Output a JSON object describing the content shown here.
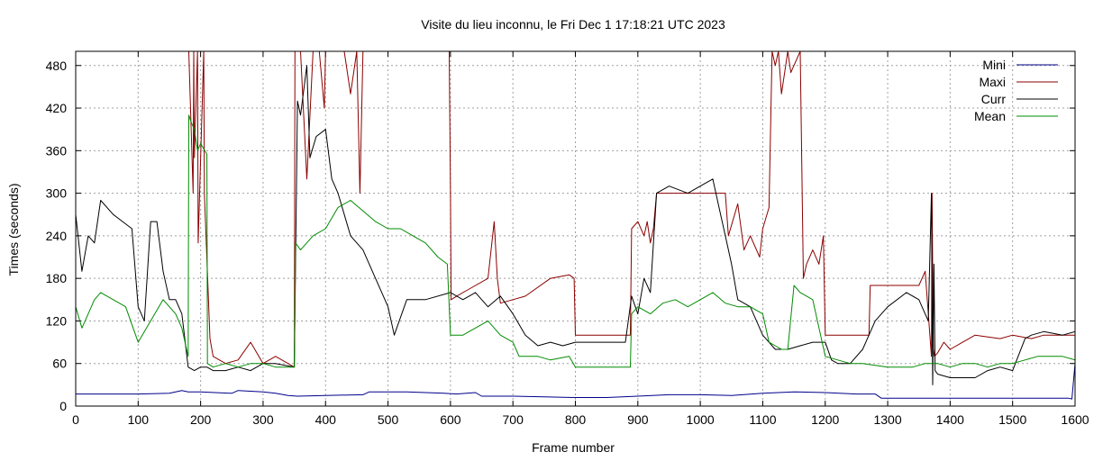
{
  "chart_data": {
    "type": "line",
    "title": "Visite du lieu inconnu, le Fri Dec  1 17:18:21 UTC 2023",
    "xlabel": "Frame number",
    "ylabel": "Times (seconds)",
    "xlim": [
      0,
      1600
    ],
    "ylim": [
      0,
      500
    ],
    "xticks": [
      0,
      100,
      200,
      300,
      400,
      500,
      600,
      700,
      800,
      900,
      1000,
      1100,
      1200,
      1300,
      1400,
      1500,
      1600
    ],
    "yticks": [
      0,
      60,
      120,
      180,
      240,
      300,
      360,
      420,
      480
    ],
    "grid": true,
    "legend_position": "top-right",
    "series": [
      {
        "name": "Mini",
        "color": "#00008b",
        "x": [
          0,
          50,
          100,
          150,
          170,
          180,
          200,
          250,
          260,
          300,
          320,
          340,
          355,
          400,
          460,
          470,
          530,
          590,
          610,
          640,
          650,
          700,
          750,
          800,
          850,
          900,
          950,
          1000,
          1050,
          1100,
          1150,
          1200,
          1250,
          1280,
          1290,
          1350,
          1400,
          1450,
          1500,
          1590,
          1595,
          1600
        ],
        "y": [
          17,
          17,
          17,
          18,
          22,
          20,
          20,
          18,
          22,
          20,
          18,
          15,
          14,
          15,
          16,
          20,
          20,
          18,
          17,
          19,
          14,
          14,
          13,
          12,
          12,
          14,
          16,
          16,
          15,
          18,
          20,
          19,
          17,
          17,
          11,
          11,
          11,
          11,
          11,
          11,
          10,
          60
        ]
      },
      {
        "name": "Maxi",
        "color": "#8b0000",
        "x": [
          0,
          180,
          181,
          188,
          189,
          190,
          195,
          196,
          205,
          206,
          215,
          220,
          240,
          260,
          280,
          300,
          320,
          350,
          351,
          360,
          370,
          380,
          390,
          398,
          400,
          430,
          440,
          450,
          455,
          460,
          470,
          500,
          530,
          560,
          597,
          598,
          600,
          601,
          610,
          630,
          660,
          670,
          675,
          680,
          700,
          720,
          760,
          790,
          798,
          800,
          850,
          888,
          890,
          900,
          910,
          915,
          920,
          925,
          930,
          990,
          1000,
          1030,
          1040,
          1045,
          1060,
          1070,
          1080,
          1095,
          1100,
          1110,
          1115,
          1120,
          1125,
          1130,
          1140,
          1145,
          1160,
          1165,
          1170,
          1180,
          1190,
          1197,
          1200,
          1250,
          1270,
          1272,
          1300,
          1350,
          1360,
          1370,
          1371,
          1373,
          1375,
          1380,
          1390,
          1400,
          1420,
          1440,
          1480,
          1500,
          1530,
          1550,
          1600
        ],
        "y": [
          null,
          null,
          500,
          300,
          500,
          350,
          500,
          230,
          500,
          300,
          95,
          70,
          60,
          65,
          90,
          60,
          70,
          55,
          500,
          500,
          320,
          500,
          500,
          420,
          500,
          500,
          440,
          500,
          300,
          500,
          null,
          null,
          null,
          null,
          null,
          500,
          300,
          150,
          155,
          165,
          180,
          260,
          180,
          145,
          150,
          155,
          180,
          185,
          180,
          100,
          100,
          100,
          250,
          260,
          240,
          260,
          230,
          250,
          300,
          300,
          300,
          300,
          300,
          240,
          285,
          220,
          240,
          210,
          250,
          280,
          500,
          480,
          500,
          440,
          500,
          470,
          500,
          180,
          200,
          220,
          200,
          240,
          100,
          100,
          100,
          170,
          170,
          170,
          190,
          70,
          300,
          80,
          70,
          75,
          90,
          80,
          90,
          100,
          95,
          100,
          95,
          100,
          100
        ]
      },
      {
        "name": "Curr",
        "color": "#000000",
        "x": [
          0,
          10,
          20,
          30,
          40,
          60,
          90,
          100,
          110,
          120,
          130,
          140,
          150,
          160,
          170,
          180,
          190,
          200,
          210,
          220,
          240,
          260,
          280,
          300,
          320,
          350,
          355,
          360,
          370,
          375,
          385,
          400,
          410,
          420,
          440,
          460,
          480,
          500,
          510,
          530,
          560,
          600,
          620,
          640,
          660,
          680,
          700,
          720,
          740,
          760,
          780,
          800,
          840,
          880,
          890,
          900,
          910,
          920,
          930,
          950,
          980,
          1000,
          1020,
          1030,
          1040,
          1050,
          1060,
          1080,
          1100,
          1120,
          1140,
          1160,
          1180,
          1200,
          1210,
          1220,
          1240,
          1260,
          1280,
          1300,
          1330,
          1350,
          1365,
          1370,
          1372,
          1374,
          1376,
          1380,
          1400,
          1420,
          1440,
          1460,
          1480,
          1500,
          1520,
          1530,
          1550,
          1580,
          1600
        ],
        "y": [
          270,
          190,
          240,
          230,
          290,
          270,
          250,
          140,
          120,
          260,
          260,
          190,
          150,
          150,
          130,
          55,
          50,
          55,
          55,
          50,
          50,
          55,
          50,
          60,
          60,
          55,
          430,
          410,
          480,
          350,
          380,
          390,
          320,
          300,
          240,
          220,
          180,
          140,
          100,
          150,
          150,
          160,
          150,
          160,
          140,
          155,
          130,
          100,
          85,
          90,
          85,
          90,
          90,
          90,
          155,
          130,
          180,
          160,
          300,
          310,
          300,
          310,
          320,
          280,
          240,
          200,
          150,
          140,
          100,
          80,
          80,
          85,
          90,
          90,
          65,
          60,
          60,
          80,
          120,
          140,
          160,
          150,
          120,
          300,
          30,
          200,
          50,
          45,
          40,
          40,
          40,
          50,
          55,
          50,
          95,
          100,
          105,
          100,
          105
        ]
      },
      {
        "name": "Mean",
        "color": "#008b00",
        "x": [
          0,
          10,
          20,
          30,
          40,
          60,
          80,
          100,
          120,
          140,
          160,
          170,
          180,
          181,
          185,
          190,
          195,
          200,
          210,
          211,
          220,
          240,
          260,
          280,
          300,
          320,
          350,
          352,
          360,
          380,
          400,
          420,
          440,
          460,
          480,
          500,
          520,
          540,
          560,
          580,
          595,
          600,
          620,
          640,
          660,
          680,
          700,
          710,
          720,
          740,
          760,
          790,
          800,
          820,
          850,
          880,
          888,
          890,
          900,
          920,
          940,
          960,
          980,
          1000,
          1020,
          1040,
          1060,
          1080,
          1100,
          1110,
          1120,
          1130,
          1140,
          1150,
          1160,
          1180,
          1200,
          1220,
          1240,
          1260,
          1300,
          1340,
          1360,
          1380,
          1400,
          1420,
          1440,
          1460,
          1480,
          1500,
          1520,
          1540,
          1560,
          1580,
          1600
        ],
        "y": [
          140,
          110,
          130,
          150,
          160,
          150,
          140,
          90,
          120,
          150,
          130,
          110,
          70,
          410,
          400,
          390,
          360,
          370,
          355,
          60,
          55,
          60,
          55,
          60,
          60,
          55,
          55,
          230,
          220,
          240,
          250,
          280,
          290,
          275,
          260,
          250,
          250,
          240,
          230,
          210,
          200,
          100,
          100,
          110,
          120,
          100,
          90,
          70,
          70,
          70,
          65,
          70,
          55,
          55,
          55,
          55,
          55,
          130,
          140,
          130,
          145,
          150,
          140,
          150,
          160,
          145,
          140,
          140,
          130,
          90,
          85,
          80,
          80,
          170,
          160,
          150,
          70,
          65,
          60,
          60,
          55,
          55,
          60,
          60,
          55,
          60,
          60,
          55,
          60,
          60,
          65,
          70,
          70,
          70,
          65
        ]
      }
    ]
  }
}
